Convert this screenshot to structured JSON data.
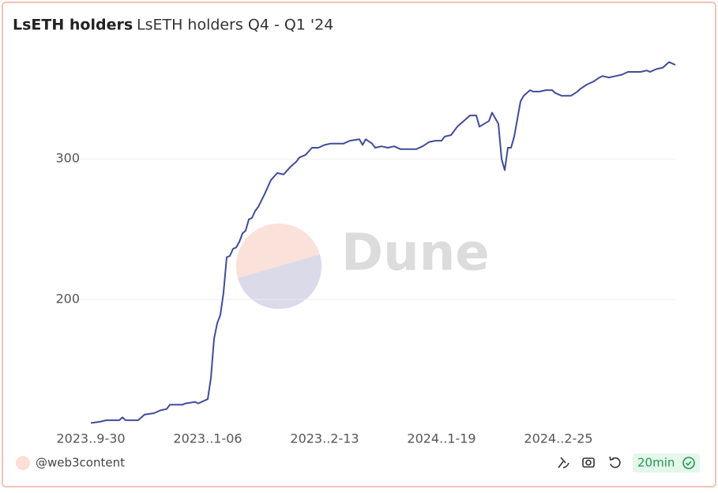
{
  "chart_data": {
    "type": "line",
    "title": "LsETH holders",
    "subtitle": "LsETH holders Q4 - Q1 '24",
    "x": [
      0,
      3,
      5,
      9,
      10,
      11,
      15,
      17,
      20,
      22,
      24,
      25,
      29,
      30,
      33,
      34,
      36,
      37,
      38,
      39,
      40,
      41,
      42,
      43,
      44,
      45,
      46,
      47,
      48,
      49,
      50,
      51,
      52,
      53,
      55,
      57,
      59,
      61,
      63,
      65,
      66,
      68,
      70,
      72,
      74,
      76,
      80,
      82,
      85,
      86,
      87,
      89,
      90,
      92,
      94,
      96,
      98,
      101,
      103,
      105,
      107,
      109,
      111,
      112,
      114,
      116,
      118,
      120,
      122,
      123,
      126,
      127,
      129,
      130,
      131,
      132,
      133,
      134,
      136,
      137,
      139,
      140,
      142,
      144,
      146,
      147,
      149,
      152,
      154,
      155,
      157,
      159,
      161,
      162,
      164,
      166,
      168,
      170,
      174,
      176,
      177,
      179,
      181,
      182,
      183,
      184,
      185
    ],
    "series": [
      {
        "name": "LsETH holders",
        "color": "#3f4c9c",
        "values": [
          112,
          113,
          114,
          114,
          116,
          114,
          114,
          118,
          119,
          121,
          122,
          125,
          125,
          126,
          127,
          126,
          128,
          129,
          144,
          172,
          183,
          189,
          205,
          230,
          231,
          236,
          237,
          241,
          247,
          249,
          257,
          258,
          263,
          266,
          275,
          285,
          290,
          289,
          294,
          298,
          301,
          303,
          308,
          308,
          310,
          311,
          311,
          313,
          314,
          310,
          314,
          311,
          308,
          309,
          308,
          309,
          307,
          307,
          307,
          309,
          312,
          313,
          313,
          316,
          317,
          323,
          327,
          331,
          331,
          323,
          327,
          333,
          325,
          300,
          292,
          308,
          308,
          316,
          341,
          345,
          349,
          348,
          348,
          349,
          349,
          347,
          345,
          345,
          348,
          350,
          353,
          355,
          358,
          359,
          358,
          359,
          360,
          362,
          362,
          363,
          362,
          364,
          365,
          367,
          369,
          368,
          367
        ]
      }
    ],
    "xlim": [
      0,
      185
    ],
    "xticks": [
      {
        "value": 0,
        "label": "2023..9-30"
      },
      {
        "value": 37,
        "label": "2023..1-06"
      },
      {
        "value": 74,
        "label": "2023..2-13"
      },
      {
        "value": 111,
        "label": "2024..1-19"
      },
      {
        "value": 148,
        "label": "2024..2-25"
      }
    ],
    "ylim": [
      110,
      380
    ],
    "yticks": [
      200,
      300
    ],
    "grid": true
  },
  "watermark": "Dune",
  "footer": {
    "author": "@web3content",
    "refresh": "20min"
  }
}
